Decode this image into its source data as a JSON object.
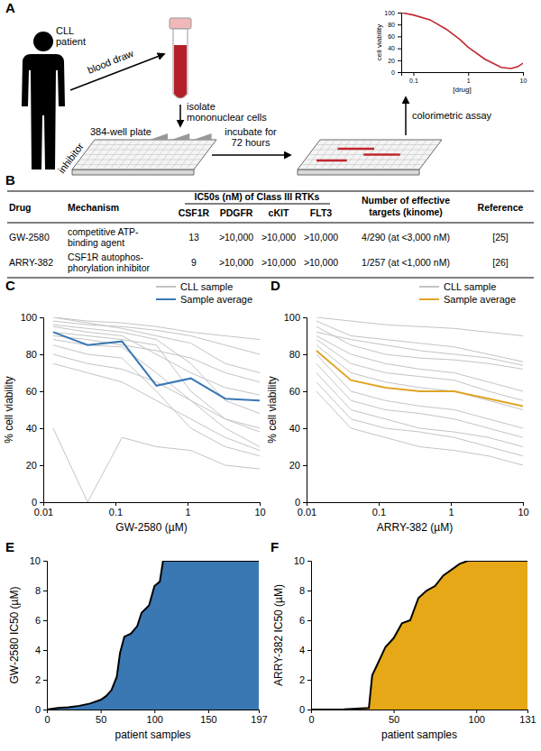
{
  "figure": {
    "panel_labels": [
      "A",
      "B",
      "C",
      "D",
      "E",
      "F"
    ]
  },
  "diagram": {
    "patient": [
      "CLL",
      "patient"
    ],
    "blood_draw": "blood draw",
    "isolate": [
      "isolate",
      "mononuclear cells"
    ],
    "plate": "384-well plate",
    "inhibitor": "inhibitor",
    "incubate": [
      "incubate for",
      "72 hours"
    ],
    "readout": "colorimetric assay"
  },
  "table": {
    "columns": [
      "Drug",
      "Mechanism"
    ],
    "group_header": "IC50s (nM) of Class III RTKs",
    "sub_columns": [
      "CSF1R",
      "PDGFR",
      "cKIT",
      "FLT3"
    ],
    "targets_header": [
      "Number of effective",
      "targets (kinome)"
    ],
    "reference_header": "Reference",
    "rows": [
      [
        "GW-2580",
        [
          "competitive ATP-",
          "binding agent"
        ],
        "13",
        ">10,000",
        ">10,000",
        ">10,000",
        "4/290 (at <3,000 nM)",
        "[25]"
      ],
      [
        "ARRY-382",
        [
          "CSF1R autophos-",
          "phorylation inhibitor"
        ],
        "9",
        ">10,000",
        ">10,000",
        ">10,000",
        "1/257 (at <1,000 nM)",
        "[26]"
      ]
    ]
  },
  "chart_data": [
    {
      "type": "line",
      "log": "x",
      "x": [
        0.06,
        0.1,
        0.2,
        0.4,
        0.7,
        1,
        2,
        4,
        6,
        8,
        10
      ],
      "values": [
        100,
        96,
        88,
        72,
        55,
        42,
        22,
        8,
        6,
        9,
        15
      ],
      "color": "#c1272d",
      "xlim": [
        0.06,
        10
      ],
      "xticks": [
        0.1,
        1,
        10
      ],
      "ylim": [
        0,
        100
      ],
      "yticks": [
        0,
        20,
        40,
        60,
        80,
        100
      ],
      "x_label": "[drug]",
      "y_label": "cell viability"
    },
    {
      "type": "line",
      "log": "x",
      "x": [
        0.0137,
        0.0412,
        0.1235,
        0.3704,
        1.111,
        3.333,
        10
      ],
      "xlim": [
        0.01,
        10
      ],
      "xticks": [
        0.01,
        0.1,
        1,
        10
      ],
      "ylim": [
        0,
        100
      ],
      "yticks": [
        0,
        20,
        40,
        60,
        80,
        100
      ],
      "x_label": "GW-2580 (µM)",
      "y_label": "% cell viability",
      "legend": "top-right",
      "series": [
        {
          "name": "CLL sample",
          "color": "#c4c4c4",
          "values": [
            [
              100,
              98,
              97,
              95,
              92,
              90,
              88
            ],
            [
              95,
              92,
              90,
              80,
              70,
              62,
              58
            ],
            [
              92,
              90,
              88,
              85,
              60,
              45,
              40
            ],
            [
              88,
              85,
              84,
              70,
              55,
              40,
              30
            ],
            [
              98,
              96,
              95,
              93,
              90,
              85,
              80
            ],
            [
              85,
              80,
              78,
              60,
              40,
              30,
              25
            ],
            [
              90,
              88,
              85,
              82,
              78,
              70,
              65
            ],
            [
              80,
              75,
              72,
              65,
              55,
              45,
              38
            ],
            [
              96,
              94,
              92,
              88,
              75,
              55,
              48
            ],
            [
              40,
              0,
              35,
              30,
              28,
              20,
              18
            ],
            [
              100,
              97,
              94,
              90,
              86,
              75,
              70
            ],
            [
              75,
              70,
              65,
              55,
              45,
              35,
              28
            ]
          ]
        },
        {
          "name": "Sample average",
          "color": "#3a78b4",
          "values": [
            92,
            85,
            87,
            63,
            67,
            56,
            55
          ]
        }
      ]
    },
    {
      "type": "line",
      "log": "x",
      "x": [
        0.0137,
        0.0412,
        0.1235,
        0.3704,
        1.111,
        3.333,
        10
      ],
      "xlim": [
        0.01,
        10
      ],
      "xticks": [
        0.01,
        0.1,
        1,
        10
      ],
      "ylim": [
        0,
        100
      ],
      "yticks": [
        0,
        20,
        40,
        60,
        80,
        100
      ],
      "x_label": "ARRY-382 (µM)",
      "y_label": "% cell viability",
      "legend": "top-right",
      "series": [
        {
          "name": "CLL sample",
          "color": "#c4c4c4",
          "values": [
            [
              100,
              98,
              96,
              95,
              94,
              92,
              90
            ],
            [
              90,
              80,
              75,
              72,
              70,
              65,
              60
            ],
            [
              85,
              70,
              65,
              62,
              60,
              55,
              50
            ],
            [
              80,
              60,
              55,
              52,
              50,
              45,
              40
            ],
            [
              95,
              85,
              80,
              78,
              77,
              75,
              72
            ],
            [
              70,
              50,
              45,
              40,
              38,
              35,
              30
            ],
            [
              88,
              75,
              70,
              68,
              66,
              60,
              55
            ],
            [
              60,
              40,
              35,
              30,
              28,
              25,
              20
            ],
            [
              92,
              88,
              85,
              82,
              80,
              78,
              74
            ],
            [
              75,
              55,
              50,
              48,
              45,
              40,
              35
            ],
            [
              98,
              90,
              88,
              86,
              84,
              80,
              76
            ],
            [
              65,
              45,
              40,
              38,
              35,
              30,
              25
            ]
          ]
        },
        {
          "name": "Sample average",
          "color": "#e0a526",
          "values": [
            82,
            66,
            62,
            60,
            60,
            56,
            52
          ]
        }
      ]
    },
    {
      "type": "area",
      "x": [
        0,
        10,
        20,
        30,
        40,
        50,
        55,
        60,
        65,
        68,
        72,
        78,
        84,
        88,
        95,
        100,
        105,
        108,
        197
      ],
      "values": [
        0,
        0.1,
        0.15,
        0.25,
        0.4,
        0.65,
        0.9,
        1.3,
        2.2,
        3.8,
        4.9,
        5.1,
        5.6,
        6.5,
        7.0,
        8.3,
        8.6,
        10,
        10
      ],
      "color": "#3a78b4",
      "xlim": [
        0,
        197
      ],
      "xticks": [
        0,
        50,
        100,
        150,
        197
      ],
      "ylim": [
        0,
        10
      ],
      "yticks": [
        0,
        2,
        4,
        6,
        8,
        10
      ],
      "x_label": "patient samples",
      "y_label": "GW-2580 IC50 (µM)"
    },
    {
      "type": "area",
      "x": [
        0,
        20,
        35,
        37,
        40,
        45,
        50,
        55,
        60,
        65,
        70,
        75,
        80,
        90,
        95,
        131
      ],
      "values": [
        0,
        0.02,
        0.1,
        2.3,
        3.0,
        4.2,
        4.8,
        5.8,
        6.0,
        7.5,
        8.0,
        8.3,
        9.0,
        9.8,
        10,
        10
      ],
      "color": "#e6a817",
      "xlim": [
        0,
        131
      ],
      "xticks": [
        0,
        50,
        100,
        131
      ],
      "ylim": [
        0,
        10
      ],
      "yticks": [
        0,
        2,
        4,
        6,
        8,
        10
      ],
      "x_label": "patient samples",
      "y_label": "ARRY-382 IC50 (µM)"
    }
  ]
}
